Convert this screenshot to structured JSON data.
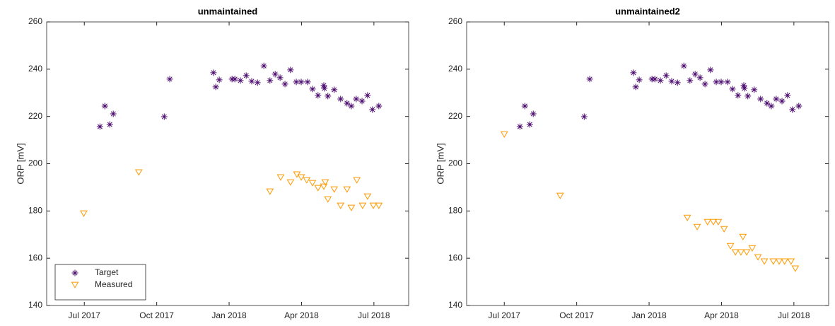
{
  "chart_data": [
    {
      "type": "scatter",
      "title": "unmaintained",
      "y_label": "ORP [mV]",
      "xlim": [
        2017.37,
        2018.62
      ],
      "xticks": [
        {
          "value": 2017.5,
          "label": "Jul 2017"
        },
        {
          "value": 2017.75,
          "label": "Oct 2017"
        },
        {
          "value": 2018.0,
          "label": "Jan 2018"
        },
        {
          "value": 2018.25,
          "label": "Apr 2018"
        },
        {
          "value": 2018.5,
          "label": "Jul 2018"
        }
      ],
      "ylim": [
        140,
        260
      ],
      "yticks": [
        140,
        160,
        180,
        200,
        220,
        240,
        260
      ],
      "legend": "lower left",
      "series": [
        {
          "name": "Target",
          "color": "#4b0a6e",
          "marker": "asterisk",
          "x": [
            2017.554,
            2017.571,
            2017.588,
            2017.6,
            2017.776,
            2017.795,
            2017.946,
            2017.954,
            2017.966,
            2018.01,
            2018.02,
            2018.039,
            2018.059,
            2018.078,
            2018.098,
            2018.12,
            2018.141,
            2018.159,
            2018.176,
            2018.193,
            2018.212,
            2018.232,
            2018.249,
            2018.271,
            2018.288,
            2018.307,
            2018.327,
            2018.329,
            2018.341,
            2018.363,
            2018.385,
            2018.407,
            2018.422,
            2018.439,
            2018.459,
            2018.478,
            2018.495,
            2018.517
          ],
          "values": [
            215.7,
            224.4,
            216.6,
            221.1,
            219.9,
            235.8,
            238.5,
            232.5,
            235.5,
            235.8,
            235.8,
            235.2,
            237.3,
            234.9,
            234.3,
            241.4,
            235.2,
            237.9,
            236.4,
            233.7,
            239.7,
            234.6,
            234.6,
            234.6,
            231.6,
            228.9,
            233.1,
            231.9,
            228.6,
            231.3,
            227.4,
            225.6,
            224.4,
            227.4,
            226.5,
            228.9,
            222.9,
            224.4
          ]
        },
        {
          "name": "Measured",
          "color": "#ff9900",
          "marker": "triangle-down",
          "x": [
            2017.498,
            2017.688,
            2018.141,
            2018.178,
            2018.212,
            2018.234,
            2018.249,
            2018.268,
            2018.288,
            2018.307,
            2018.327,
            2018.332,
            2018.341,
            2018.363,
            2018.385,
            2018.407,
            2018.422,
            2018.441,
            2018.461,
            2018.478,
            2018.498,
            2018.517
          ],
          "values": [
            178.9,
            196.3,
            188.2,
            194.2,
            192.1,
            195.4,
            194.2,
            193.0,
            191.8,
            189.7,
            190.3,
            192.1,
            184.9,
            189.1,
            182.2,
            189.1,
            181.3,
            193.0,
            182.2,
            186.1,
            182.2,
            182.2
          ]
        }
      ]
    },
    {
      "type": "scatter",
      "title": "unmaintained2",
      "y_label": "ORP [mV]",
      "xlim": [
        2017.37,
        2018.62
      ],
      "xticks": [
        {
          "value": 2017.5,
          "label": "Jul 2017"
        },
        {
          "value": 2017.75,
          "label": "Oct 2017"
        },
        {
          "value": 2018.0,
          "label": "Jan 2018"
        },
        {
          "value": 2018.25,
          "label": "Apr 2018"
        },
        {
          "value": 2018.5,
          "label": "Jul 2018"
        }
      ],
      "ylim": [
        140,
        260
      ],
      "yticks": [
        140,
        160,
        180,
        200,
        220,
        240,
        260
      ],
      "series": [
        {
          "color": "#4b0a6e",
          "marker": "asterisk",
          "x": [
            2017.554,
            2017.571,
            2017.588,
            2017.6,
            2017.776,
            2017.795,
            2017.946,
            2017.954,
            2017.966,
            2018.01,
            2018.02,
            2018.039,
            2018.059,
            2018.078,
            2018.098,
            2018.12,
            2018.141,
            2018.159,
            2018.176,
            2018.193,
            2018.212,
            2018.232,
            2018.249,
            2018.271,
            2018.288,
            2018.307,
            2018.327,
            2018.329,
            2018.341,
            2018.363,
            2018.385,
            2018.407,
            2018.422,
            2018.439,
            2018.459,
            2018.478,
            2018.495,
            2018.517
          ],
          "values": [
            215.7,
            224.4,
            216.6,
            221.1,
            219.9,
            235.8,
            238.5,
            232.5,
            235.5,
            235.8,
            235.8,
            235.2,
            237.3,
            234.9,
            234.3,
            241.4,
            235.2,
            237.9,
            236.4,
            233.7,
            239.7,
            234.6,
            234.6,
            234.6,
            231.6,
            228.9,
            233.1,
            231.9,
            228.6,
            231.3,
            227.4,
            225.6,
            224.4,
            227.4,
            226.5,
            228.9,
            222.9,
            224.4
          ]
        },
        {
          "color": "#ff9900",
          "marker": "triangle-down",
          "x": [
            2017.5,
            2017.693,
            2018.132,
            2018.166,
            2018.202,
            2018.222,
            2018.239,
            2018.259,
            2018.281,
            2018.298,
            2018.317,
            2018.324,
            2018.337,
            2018.356,
            2018.376,
            2018.398,
            2018.429,
            2018.449,
            2018.468,
            2018.49,
            2018.505
          ],
          "values": [
            212.4,
            186.4,
            177.1,
            173.2,
            175.3,
            175.3,
            175.3,
            172.3,
            165.1,
            162.5,
            162.5,
            169.0,
            162.5,
            164.2,
            160.4,
            158.6,
            158.6,
            158.6,
            158.6,
            158.6,
            155.6
          ]
        }
      ]
    }
  ]
}
